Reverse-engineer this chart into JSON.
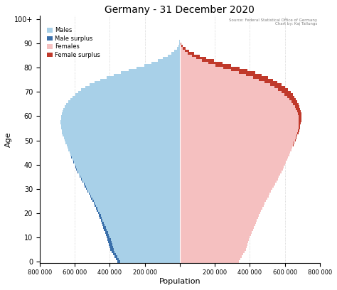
{
  "title": "Germany - 31 December 2020",
  "source_text": "Source: Federal Statistical Office of Germany\nChart by: Kaj Tallungs",
  "xlabel": "Population",
  "ylabel": "Age",
  "age_labels": [
    "0",
    "10",
    "20",
    "30",
    "40",
    "50",
    "60",
    "70",
    "80",
    "90",
    "100+"
  ],
  "age_ticks": [
    0,
    10,
    20,
    30,
    40,
    50,
    60,
    70,
    80,
    90,
    100
  ],
  "xlim": 800000,
  "color_male": "#a8d0e8",
  "color_male_surplus": "#3a6faa",
  "color_female": "#f5c0c0",
  "color_female_surplus": "#c0392b",
  "males": [
    357000,
    365000,
    374000,
    382000,
    390000,
    396000,
    400000,
    404000,
    408000,
    412000,
    416000,
    421000,
    426000,
    432000,
    437000,
    443000,
    447000,
    452000,
    457000,
    462000,
    468000,
    474000,
    480000,
    487000,
    492000,
    498000,
    505000,
    512000,
    519000,
    527000,
    535000,
    542000,
    549000,
    556000,
    563000,
    570000,
    577000,
    584000,
    591000,
    597000,
    602000,
    608000,
    614000,
    619000,
    624000,
    630000,
    636000,
    642000,
    647000,
    652000,
    658000,
    663000,
    668000,
    672000,
    675000,
    677000,
    679000,
    680000,
    680000,
    679000,
    677000,
    674000,
    670000,
    664000,
    657000,
    648000,
    638000,
    626000,
    613000,
    598000,
    581000,
    562000,
    540000,
    515000,
    485000,
    453000,
    417000,
    378000,
    336000,
    292000,
    247000,
    203000,
    162000,
    126000,
    95000,
    68000,
    47000,
    30000,
    17000,
    9000,
    4500,
    2000,
    900,
    400,
    180,
    80,
    40,
    20,
    10,
    5,
    3
  ],
  "females": [
    339000,
    347000,
    355000,
    363000,
    371000,
    377000,
    381000,
    385000,
    390000,
    395000,
    400000,
    405000,
    411000,
    417000,
    423000,
    429000,
    434000,
    440000,
    446000,
    452000,
    458000,
    465000,
    472000,
    479000,
    485000,
    492000,
    499000,
    507000,
    514000,
    522000,
    530000,
    537000,
    545000,
    552000,
    559000,
    566000,
    574000,
    581000,
    588000,
    594000,
    600000,
    606000,
    612000,
    618000,
    624000,
    631000,
    637000,
    643000,
    649000,
    655000,
    662000,
    667000,
    672000,
    677000,
    681000,
    685000,
    688000,
    691000,
    693000,
    694000,
    694000,
    693000,
    691000,
    688000,
    684000,
    679000,
    672000,
    664000,
    655000,
    644000,
    632000,
    618000,
    601000,
    581000,
    558000,
    532000,
    503000,
    469000,
    430000,
    387000,
    342000,
    294000,
    245000,
    196000,
    152000,
    113000,
    80000,
    54000,
    33000,
    18000,
    9500,
    4500,
    1800,
    700,
    270,
    110,
    50,
    25,
    12,
    6,
    4
  ]
}
